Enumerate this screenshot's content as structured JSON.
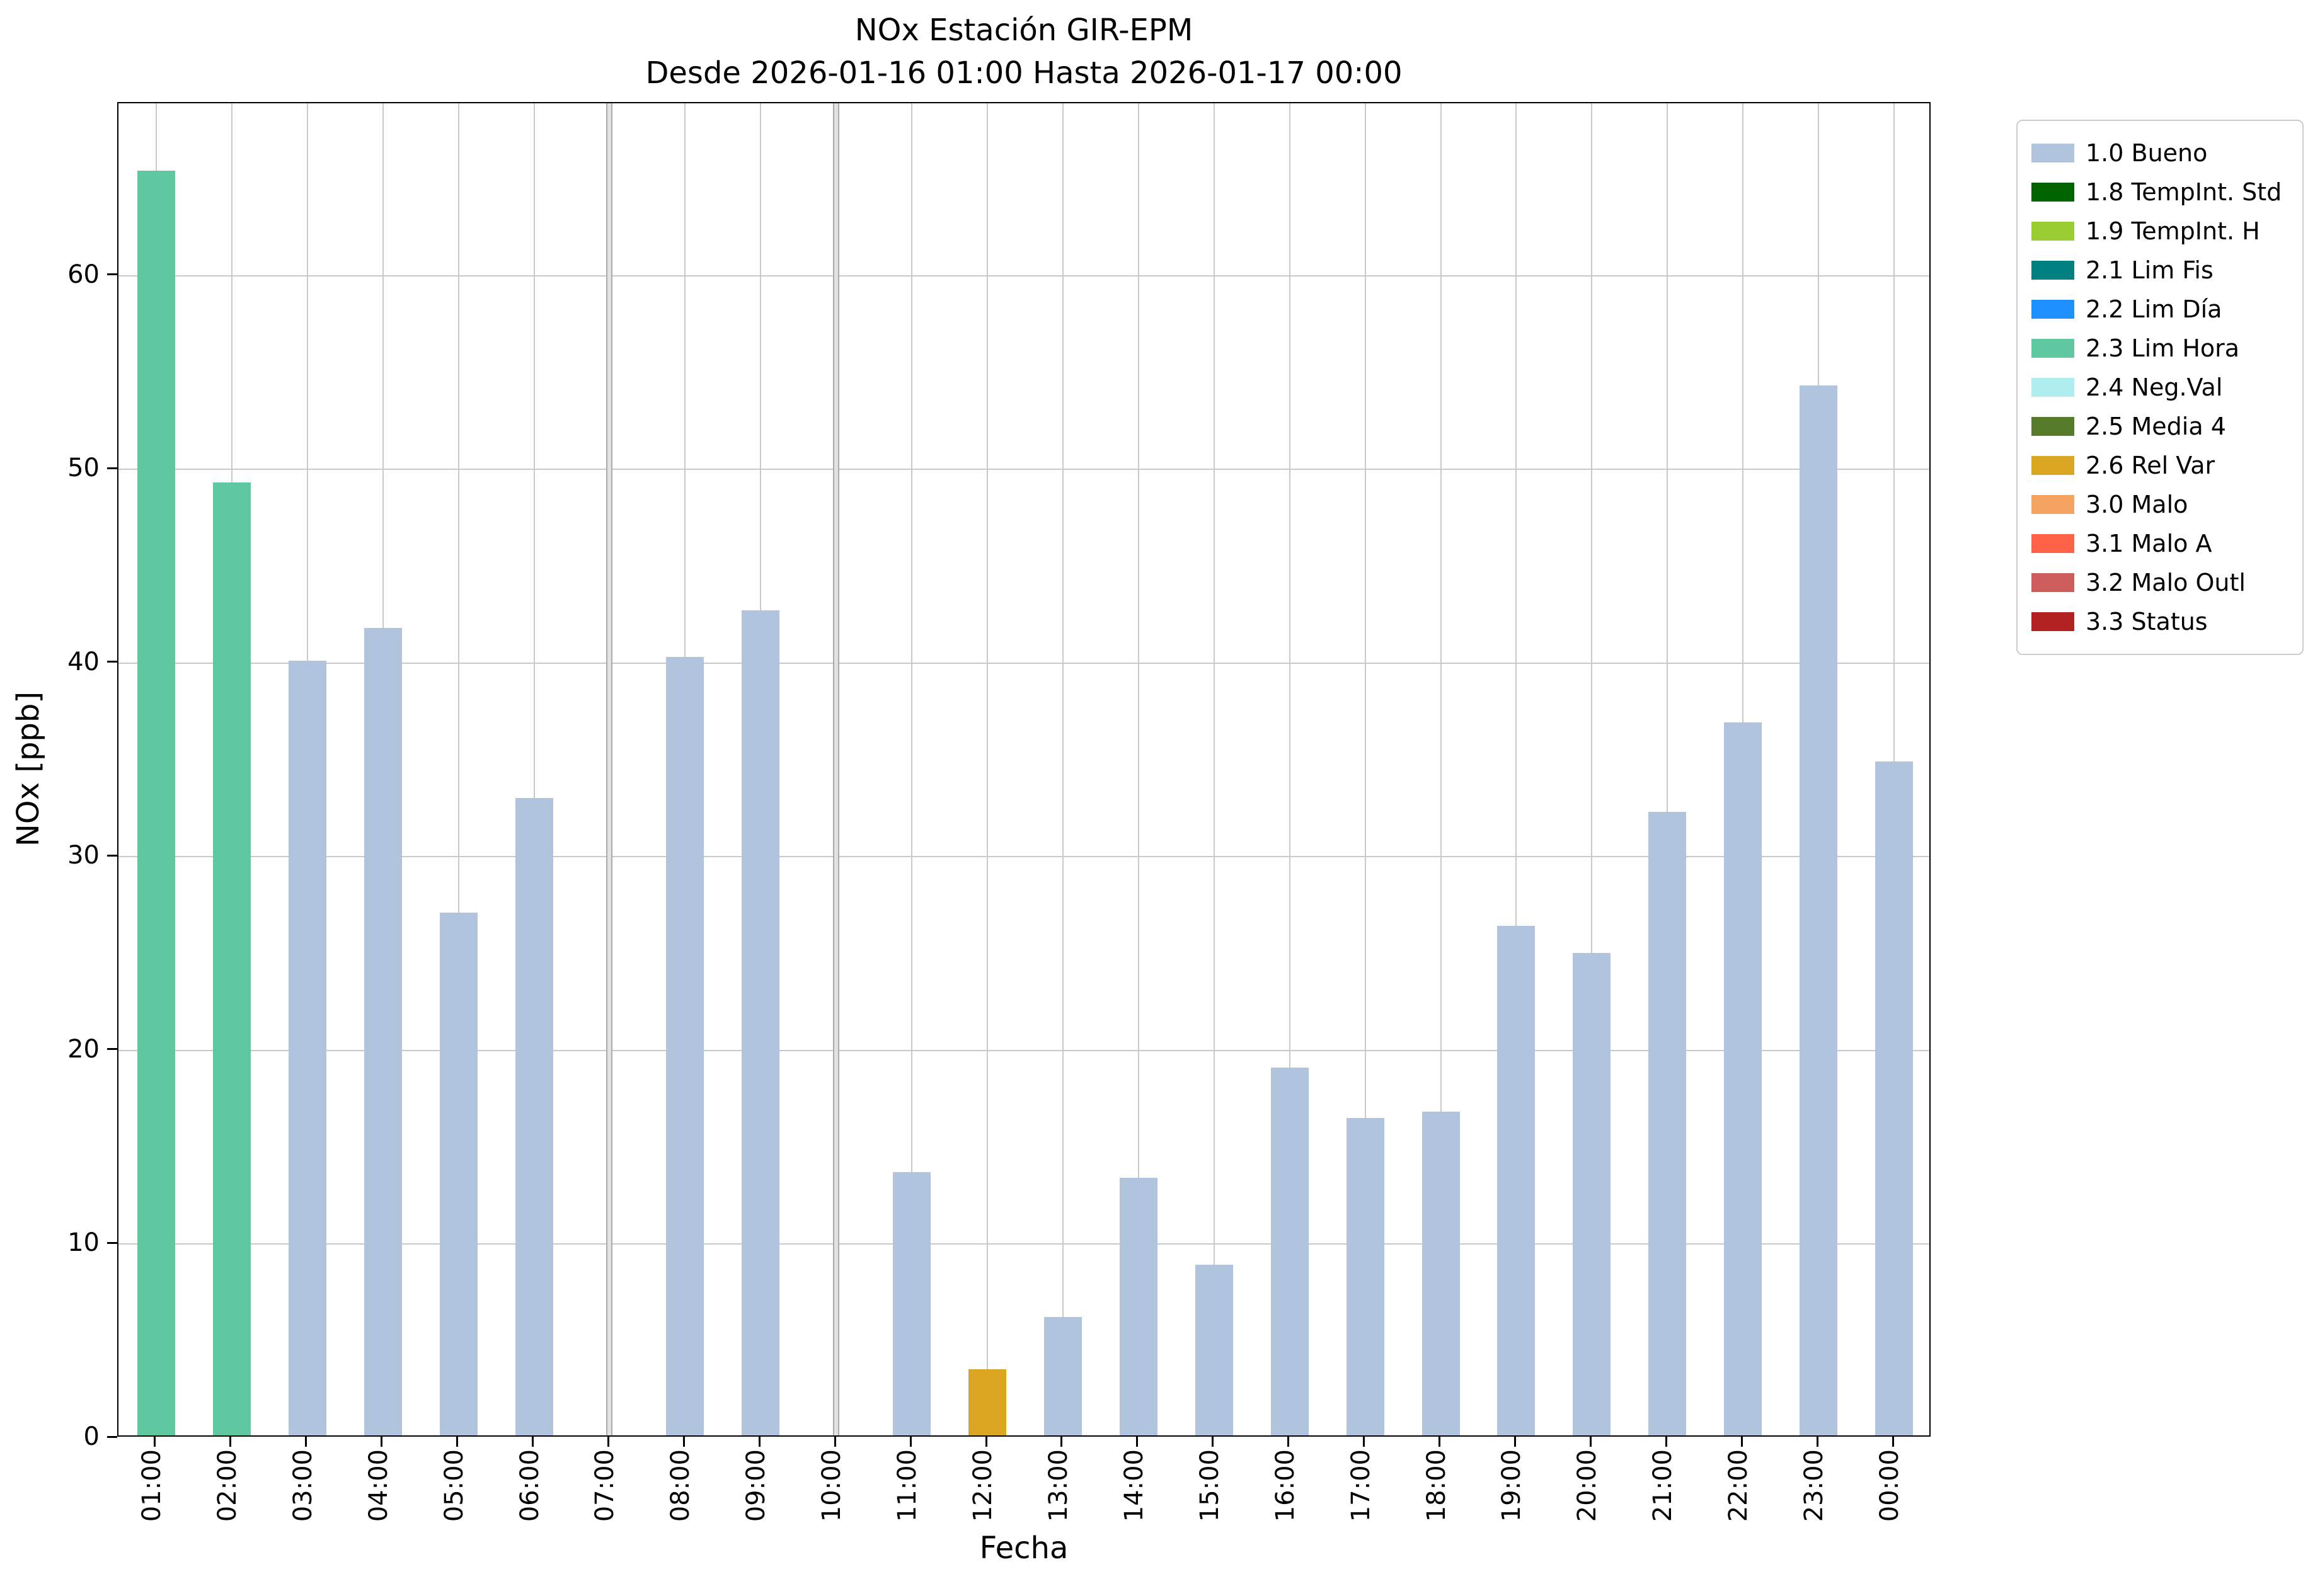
{
  "chart_data": {
    "type": "bar",
    "title": "NOx Estación GIR-EPM",
    "subtitle": "Desde 2026-01-16 01:00 Hasta 2026-01-17 00:00",
    "xlabel": "Fecha",
    "ylabel": "NOx [ppb]",
    "ylim": [
      0,
      68.9
    ],
    "yticks": [
      0,
      10,
      20,
      30,
      40,
      50,
      60
    ],
    "grid": true,
    "legend_position": "outside-upper-right",
    "categories": [
      "01:00",
      "02:00",
      "03:00",
      "04:00",
      "05:00",
      "06:00",
      "07:00",
      "08:00",
      "09:00",
      "10:00",
      "11:00",
      "12:00",
      "13:00",
      "14:00",
      "15:00",
      "16:00",
      "17:00",
      "18:00",
      "19:00",
      "20:00",
      "21:00",
      "22:00",
      "23:00",
      "00:00"
    ],
    "values": [
      65.3,
      49.2,
      40.0,
      41.7,
      27.0,
      32.9,
      null,
      40.2,
      42.6,
      null,
      13.6,
      3.4,
      6.1,
      13.3,
      8.8,
      19.0,
      16.4,
      16.7,
      26.3,
      24.9,
      32.2,
      36.8,
      54.2,
      34.8
    ],
    "bar_statuses": [
      "2.3 Lim Hora",
      "2.3 Lim Hora",
      "1.0 Bueno",
      "1.0 Bueno",
      "1.0 Bueno",
      "1.0 Bueno",
      null,
      "1.0 Bueno",
      "1.0 Bueno",
      null,
      "1.0 Bueno",
      "2.6 Rel Var",
      "1.0 Bueno",
      "1.0 Bueno",
      "1.0 Bueno",
      "1.0 Bueno",
      "1.0 Bueno",
      "1.0 Bueno",
      "1.0 Bueno",
      "1.0 Bueno",
      "1.0 Bueno",
      "1.0 Bueno",
      "1.0 Bueno",
      "1.0 Bueno"
    ],
    "missing": [
      "07:00",
      "10:00"
    ],
    "status_colors": {
      "1.0 Bueno": "#B0C4DE",
      "2.3 Lim Hora": "#5FC8A1",
      "2.6 Rel Var": "#DAA520"
    },
    "legend": [
      {
        "label": "1.0 Bueno",
        "color": "#B0C4DE"
      },
      {
        "label": "1.8 TempInt. Std",
        "color": "#006400"
      },
      {
        "label": "1.9 TempInt. H",
        "color": "#9ACD32"
      },
      {
        "label": "2.1 Lim Fis",
        "color": "#008080"
      },
      {
        "label": "2.2 Lim Día",
        "color": "#1E90FF"
      },
      {
        "label": "2.3 Lim Hora",
        "color": "#5FC8A1"
      },
      {
        "label": "2.4 Neg.Val",
        "color": "#AFEEEE"
      },
      {
        "label": "2.5 Media 4",
        "color": "#557B2B"
      },
      {
        "label": "2.6 Rel Var",
        "color": "#DAA520"
      },
      {
        "label": "3.0 Malo",
        "color": "#F4A460"
      },
      {
        "label": "3.1 Malo A",
        "color": "#FF6347"
      },
      {
        "label": "3.2 Malo Outl",
        "color": "#CD5C5C"
      },
      {
        "label": "3.3 Status",
        "color": "#B22222"
      }
    ]
  }
}
